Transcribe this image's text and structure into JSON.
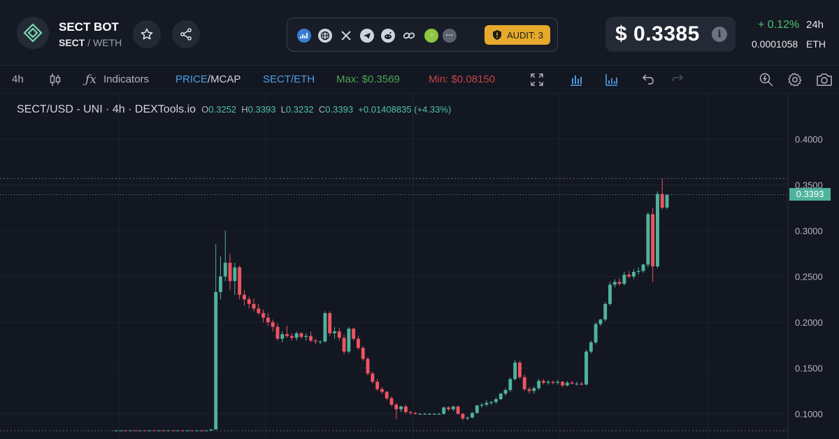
{
  "header": {
    "token_name": "SECT BOT",
    "base": "SECT",
    "separator": " / ",
    "quote": "WETH",
    "audit_label": "AUDIT: 3",
    "price": "$ 0.3385",
    "info": "i",
    "change": "+ 0.12%",
    "period": "24h",
    "eth_price": "0.0001058",
    "eth_unit": "ETH",
    "social_icons": [
      "dextools-icon",
      "globe-icon",
      "x-icon",
      "telegram-icon",
      "reddit-icon",
      "link-icon",
      "coingecko-icon",
      "more-icon"
    ]
  },
  "toolbar": {
    "interval": "4h",
    "indicators": "Indicators",
    "price": "PRICE",
    "mcap": "/MCAP",
    "pair": "SECT/ETH",
    "max": "Max: $0.3569",
    "min": "Min: $0.08150"
  },
  "legend": {
    "title": "SECT/USD - UNI · 4h · DEXTools.io",
    "o_label": "O",
    "o": "0.3252",
    "h_label": "H",
    "h": "0.3393",
    "l_label": "L",
    "l": "0.3232",
    "c_label": "C",
    "c": "0.3393",
    "change": "+0.01408835 (+4.33%)"
  },
  "colors": {
    "up": "#4fb39b",
    "down": "#ef5361",
    "background": "#131722",
    "max_color": "#4ea356",
    "min_color": "#c74344",
    "accent_blue": "#4e9ee5",
    "audit": "#e7a92b"
  },
  "chart_data": {
    "type": "candlestick",
    "y_ticks": [
      "0.4000",
      "0.3500",
      "0.3000",
      "0.2500",
      "0.2000",
      "0.1500",
      "0.1000"
    ],
    "y_tick_values": [
      0.4,
      0.35,
      0.3,
      0.25,
      0.2,
      0.15,
      0.1
    ],
    "ylim": [
      0.082,
      0.425
    ],
    "last_price_label": "0.3393",
    "last_price": 0.3393,
    "max_line": 0.3569,
    "min_line": 0.0815,
    "grid": true,
    "candles": [
      [
        0.0818,
        0.082,
        0.0815,
        0.0818
      ],
      [
        0.0818,
        0.082,
        0.0816,
        0.0819
      ],
      [
        0.0819,
        0.0821,
        0.0817,
        0.0818
      ],
      [
        0.0818,
        0.082,
        0.0816,
        0.0819
      ],
      [
        0.0819,
        0.082,
        0.0817,
        0.0818
      ],
      [
        0.0818,
        0.082,
        0.0816,
        0.0819
      ],
      [
        0.0819,
        0.0821,
        0.0817,
        0.0818
      ],
      [
        0.0818,
        0.082,
        0.0816,
        0.0819
      ],
      [
        0.0819,
        0.082,
        0.0817,
        0.0818
      ],
      [
        0.0818,
        0.082,
        0.0816,
        0.0819
      ],
      [
        0.0819,
        0.0821,
        0.0817,
        0.0818
      ],
      [
        0.0818,
        0.082,
        0.0816,
        0.0819
      ],
      [
        0.0819,
        0.082,
        0.0817,
        0.0818
      ],
      [
        0.0818,
        0.082,
        0.0816,
        0.0819
      ],
      [
        0.0819,
        0.0821,
        0.0817,
        0.0818
      ],
      [
        0.0818,
        0.082,
        0.0816,
        0.0819
      ],
      [
        0.0819,
        0.082,
        0.0817,
        0.0818
      ],
      [
        0.0818,
        0.082,
        0.0816,
        0.0819
      ],
      [
        0.0819,
        0.0821,
        0.0817,
        0.0818
      ],
      [
        0.0818,
        0.082,
        0.0816,
        0.0819
      ],
      [
        0.0819,
        0.0835,
        0.0815,
        0.083
      ],
      [
        0.083,
        0.285,
        0.0828,
        0.233
      ],
      [
        0.233,
        0.272,
        0.225,
        0.25
      ],
      [
        0.25,
        0.3,
        0.245,
        0.265
      ],
      [
        0.265,
        0.275,
        0.235,
        0.245
      ],
      [
        0.245,
        0.265,
        0.23,
        0.26
      ],
      [
        0.26,
        0.262,
        0.225,
        0.23
      ],
      [
        0.23,
        0.235,
        0.218,
        0.225
      ],
      [
        0.225,
        0.228,
        0.215,
        0.22
      ],
      [
        0.22,
        0.226,
        0.212,
        0.215
      ],
      [
        0.215,
        0.22,
        0.208,
        0.21
      ],
      [
        0.21,
        0.214,
        0.2,
        0.205
      ],
      [
        0.205,
        0.21,
        0.196,
        0.2
      ],
      [
        0.2,
        0.203,
        0.19,
        0.195
      ],
      [
        0.195,
        0.199,
        0.18,
        0.182
      ],
      [
        0.182,
        0.19,
        0.178,
        0.187
      ],
      [
        0.187,
        0.196,
        0.183,
        0.185
      ],
      [
        0.185,
        0.188,
        0.18,
        0.183
      ],
      [
        0.183,
        0.19,
        0.18,
        0.188
      ],
      [
        0.188,
        0.189,
        0.182,
        0.184
      ],
      [
        0.184,
        0.188,
        0.18,
        0.185
      ],
      [
        0.185,
        0.19,
        0.178,
        0.18
      ],
      [
        0.18,
        0.182,
        0.176,
        0.179
      ],
      [
        0.179,
        0.18,
        0.176,
        0.179
      ],
      [
        0.179,
        0.212,
        0.178,
        0.21
      ],
      [
        0.21,
        0.212,
        0.185,
        0.188
      ],
      [
        0.188,
        0.195,
        0.182,
        0.19
      ],
      [
        0.19,
        0.194,
        0.18,
        0.183
      ],
      [
        0.183,
        0.187,
        0.165,
        0.168
      ],
      [
        0.168,
        0.195,
        0.166,
        0.193
      ],
      [
        0.193,
        0.194,
        0.18,
        0.182
      ],
      [
        0.182,
        0.185,
        0.17,
        0.172
      ],
      [
        0.172,
        0.174,
        0.158,
        0.16
      ],
      [
        0.16,
        0.162,
        0.142,
        0.144
      ],
      [
        0.144,
        0.146,
        0.133,
        0.135
      ],
      [
        0.135,
        0.138,
        0.125,
        0.127
      ],
      [
        0.127,
        0.129,
        0.122,
        0.124
      ],
      [
        0.124,
        0.125,
        0.115,
        0.117
      ],
      [
        0.117,
        0.119,
        0.108,
        0.11
      ],
      [
        0.11,
        0.112,
        0.094,
        0.105
      ],
      [
        0.105,
        0.109,
        0.102,
        0.108
      ],
      [
        0.108,
        0.11,
        0.1,
        0.102
      ],
      [
        0.102,
        0.103,
        0.099,
        0.101
      ],
      [
        0.101,
        0.102,
        0.099,
        0.1
      ],
      [
        0.1,
        0.101,
        0.099,
        0.1
      ],
      [
        0.1,
        0.101,
        0.099,
        0.1
      ],
      [
        0.1,
        0.101,
        0.099,
        0.1
      ],
      [
        0.1,
        0.101,
        0.099,
        0.1
      ],
      [
        0.1,
        0.101,
        0.099,
        0.1
      ],
      [
        0.1,
        0.108,
        0.099,
        0.107
      ],
      [
        0.107,
        0.108,
        0.103,
        0.105
      ],
      [
        0.105,
        0.109,
        0.103,
        0.108
      ],
      [
        0.108,
        0.109,
        0.099,
        0.1
      ],
      [
        0.1,
        0.101,
        0.093,
        0.095
      ],
      [
        0.095,
        0.097,
        0.093,
        0.096
      ],
      [
        0.096,
        0.102,
        0.095,
        0.101
      ],
      [
        0.101,
        0.11,
        0.1,
        0.109
      ],
      [
        0.109,
        0.112,
        0.107,
        0.11
      ],
      [
        0.11,
        0.115,
        0.108,
        0.112
      ],
      [
        0.112,
        0.114,
        0.11,
        0.113
      ],
      [
        0.113,
        0.118,
        0.111,
        0.116
      ],
      [
        0.116,
        0.123,
        0.115,
        0.122
      ],
      [
        0.122,
        0.128,
        0.12,
        0.126
      ],
      [
        0.126,
        0.14,
        0.124,
        0.138
      ],
      [
        0.138,
        0.159,
        0.136,
        0.156
      ],
      [
        0.156,
        0.158,
        0.138,
        0.14
      ],
      [
        0.14,
        0.143,
        0.125,
        0.127
      ],
      [
        0.127,
        0.129,
        0.122,
        0.125
      ],
      [
        0.125,
        0.13,
        0.122,
        0.128
      ],
      [
        0.128,
        0.138,
        0.126,
        0.136
      ],
      [
        0.136,
        0.138,
        0.132,
        0.134
      ],
      [
        0.134,
        0.137,
        0.132,
        0.135
      ],
      [
        0.135,
        0.136,
        0.132,
        0.134
      ],
      [
        0.134,
        0.137,
        0.132,
        0.135
      ],
      [
        0.135,
        0.136,
        0.129,
        0.131
      ],
      [
        0.131,
        0.136,
        0.13,
        0.134
      ],
      [
        0.134,
        0.136,
        0.132,
        0.133
      ],
      [
        0.133,
        0.135,
        0.131,
        0.133
      ],
      [
        0.133,
        0.135,
        0.131,
        0.132
      ],
      [
        0.132,
        0.17,
        0.131,
        0.168
      ],
      [
        0.168,
        0.18,
        0.166,
        0.178
      ],
      [
        0.178,
        0.2,
        0.176,
        0.198
      ],
      [
        0.198,
        0.204,
        0.196,
        0.203
      ],
      [
        0.203,
        0.222,
        0.201,
        0.22
      ],
      [
        0.22,
        0.244,
        0.218,
        0.241
      ],
      [
        0.241,
        0.247,
        0.238,
        0.244
      ],
      [
        0.244,
        0.248,
        0.24,
        0.242
      ],
      [
        0.242,
        0.255,
        0.24,
        0.252
      ],
      [
        0.252,
        0.256,
        0.248,
        0.25
      ],
      [
        0.25,
        0.258,
        0.247,
        0.255
      ],
      [
        0.255,
        0.26,
        0.252,
        0.256
      ],
      [
        0.256,
        0.264,
        0.254,
        0.263
      ],
      [
        0.263,
        0.32,
        0.26,
        0.318
      ],
      [
        0.318,
        0.325,
        0.244,
        0.261
      ],
      [
        0.261,
        0.343,
        0.259,
        0.34
      ],
      [
        0.34,
        0.3569,
        0.323,
        0.3252
      ],
      [
        0.3252,
        0.3393,
        0.3232,
        0.3393
      ]
    ]
  }
}
